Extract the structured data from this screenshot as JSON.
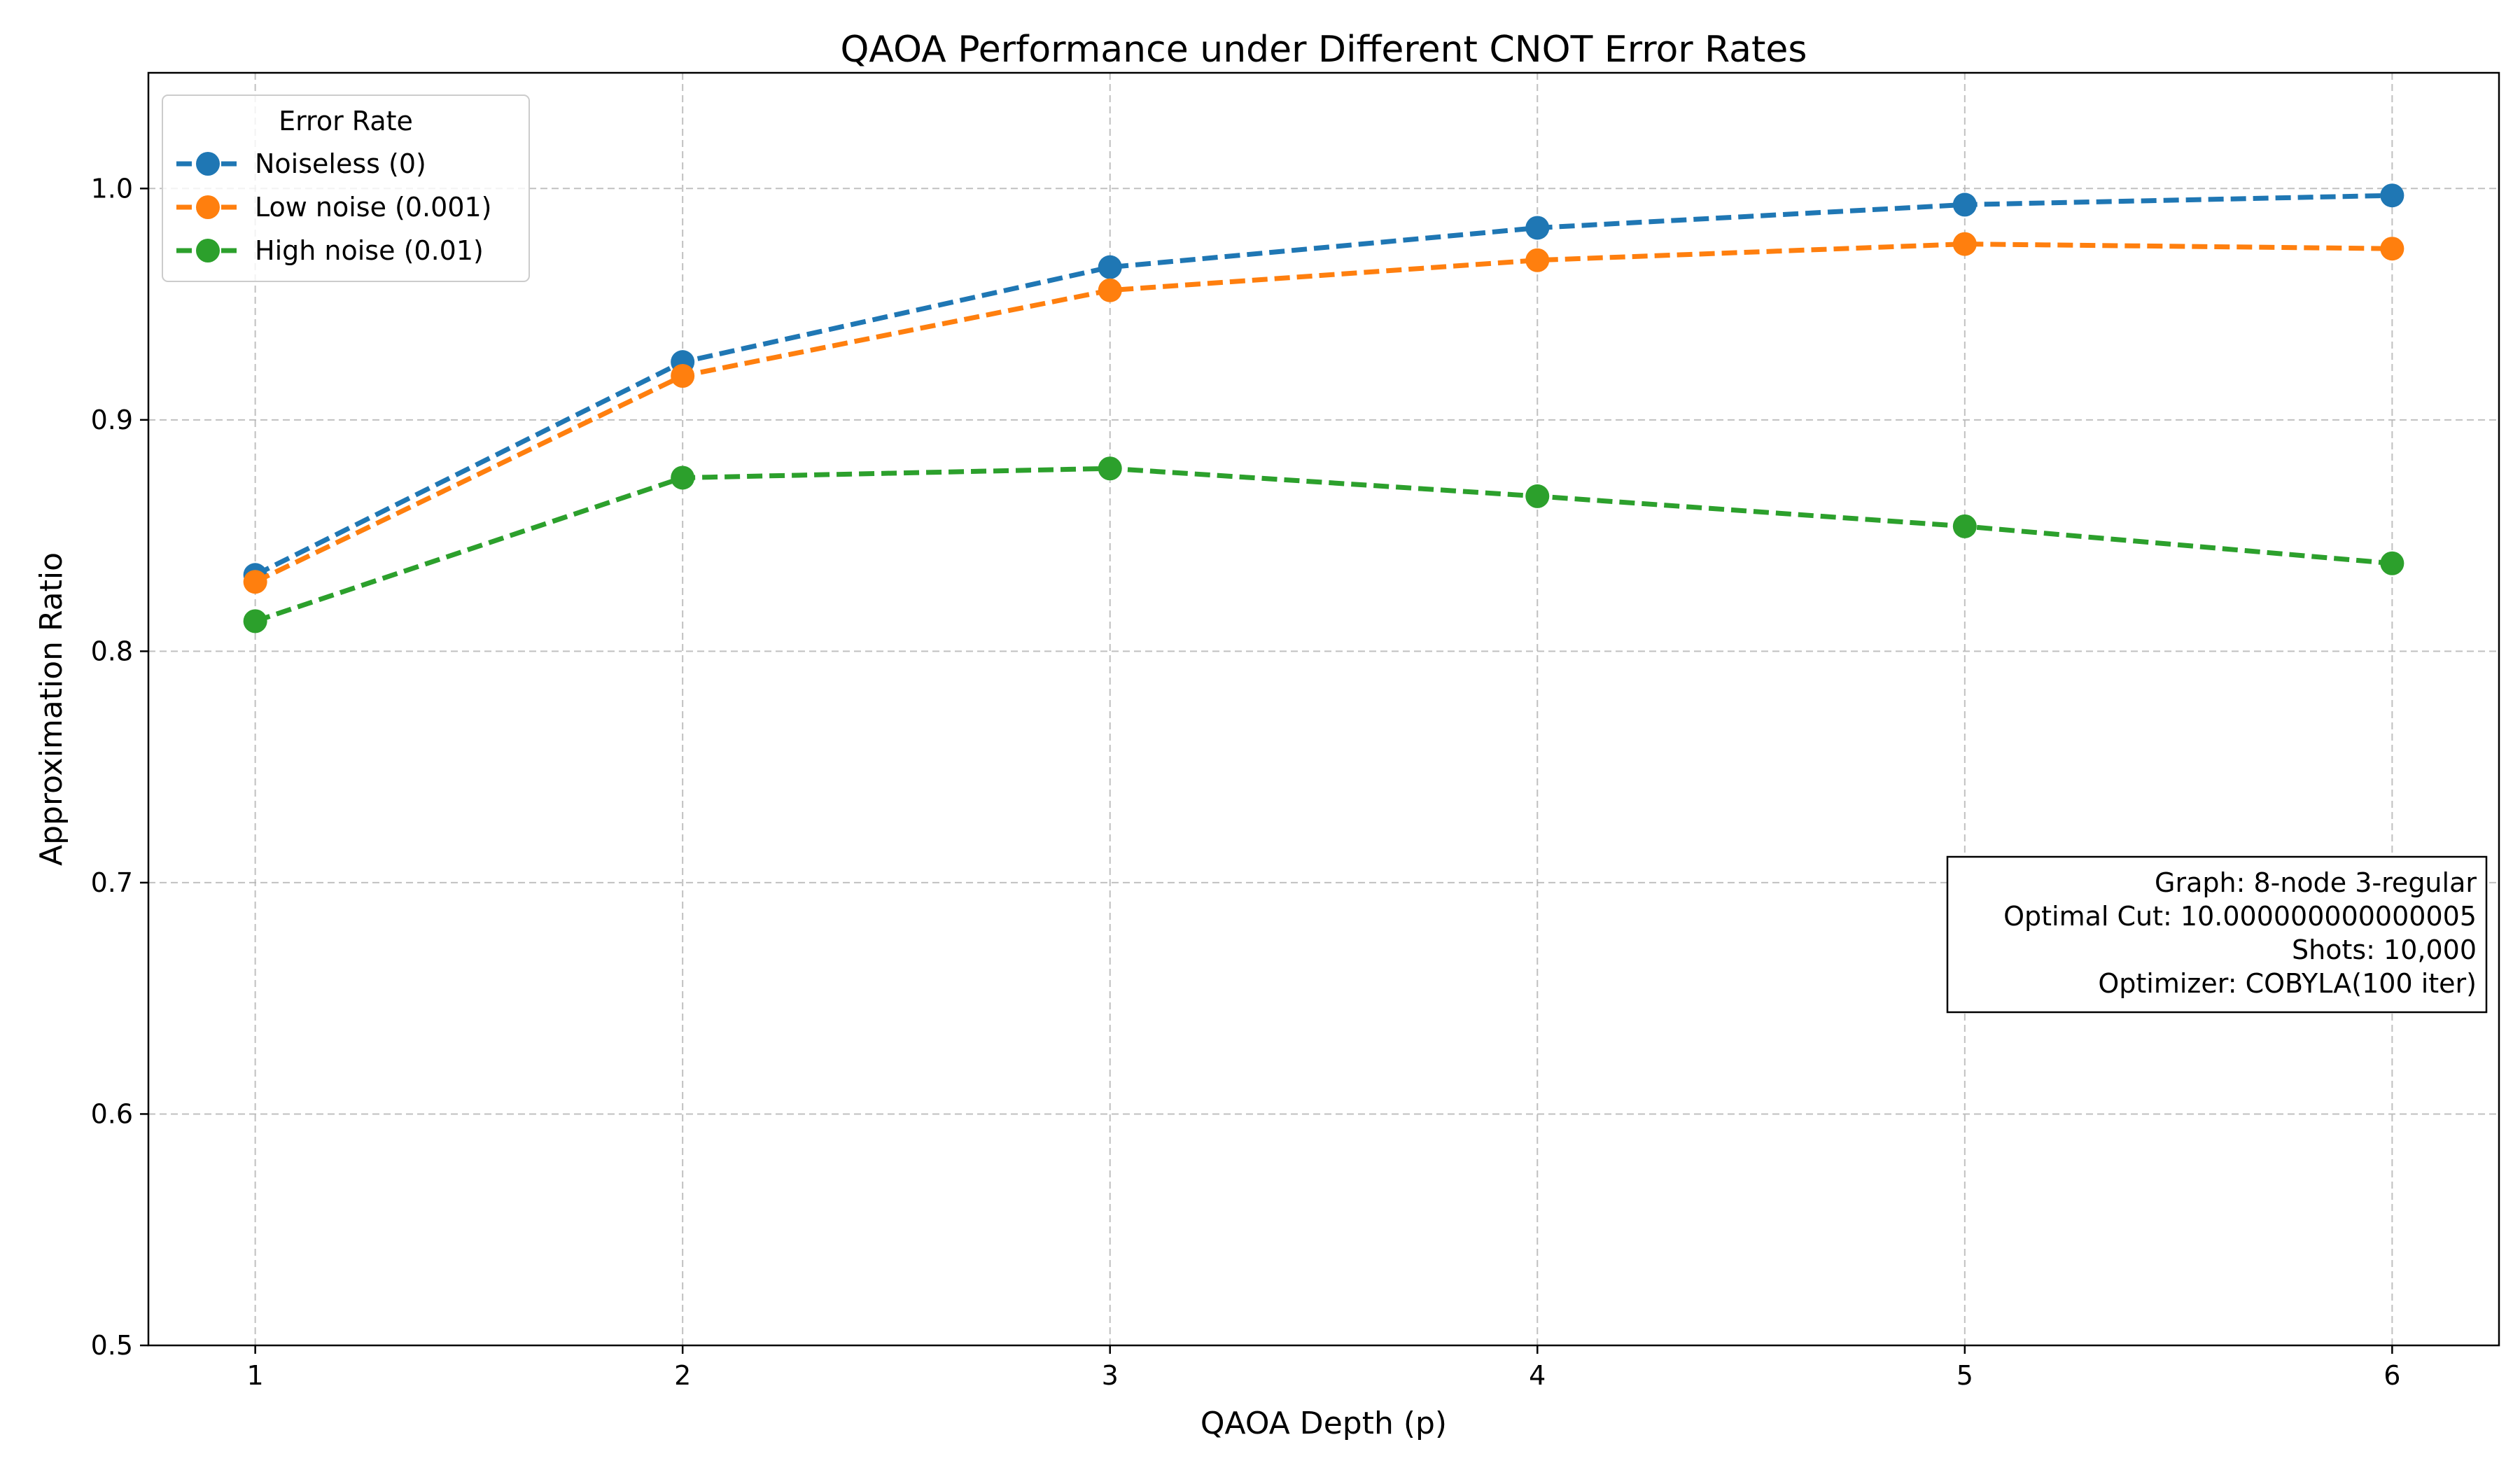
{
  "chart_data": {
    "type": "line",
    "title": "QAOA Performance under Different CNOT Error Rates",
    "xlabel": "QAOA Depth (p)",
    "ylabel": "Approximation Ratio",
    "x": [
      1,
      2,
      3,
      4,
      5,
      6
    ],
    "x_ticks": [
      "1",
      "2",
      "3",
      "4",
      "5",
      "6"
    ],
    "xlim": [
      0.75,
      6.25
    ],
    "ylim": [
      0.5,
      1.05
    ],
    "y_ticks": [
      "0.5",
      "0.6",
      "0.7",
      "0.8",
      "0.9",
      "1.0"
    ],
    "y_tick_values": [
      0.5,
      0.6,
      0.7,
      0.8,
      0.9,
      1.0
    ],
    "grid": true,
    "legend": {
      "title": "Error Rate",
      "placement": "upper-left"
    },
    "series": [
      {
        "name": "Noiseless (0)",
        "color": "#1f77b4",
        "values": [
          0.833,
          0.925,
          0.966,
          0.983,
          0.993,
          0.997
        ]
      },
      {
        "name": "Low noise (0.001)",
        "color": "#ff7f0e",
        "values": [
          0.83,
          0.919,
          0.956,
          0.969,
          0.976,
          0.974
        ]
      },
      {
        "name": "High noise (0.01)",
        "color": "#2ca02c",
        "values": [
          0.813,
          0.875,
          0.879,
          0.867,
          0.854,
          0.838
        ]
      }
    ],
    "annotation": {
      "lines": [
        "Graph: 8-node 3-regular",
        "Optimal Cut: 10.000000000000005",
        "Shots: 10,000",
        "Optimizer: COBYLA(100 iter)"
      ],
      "placement": "right"
    }
  }
}
